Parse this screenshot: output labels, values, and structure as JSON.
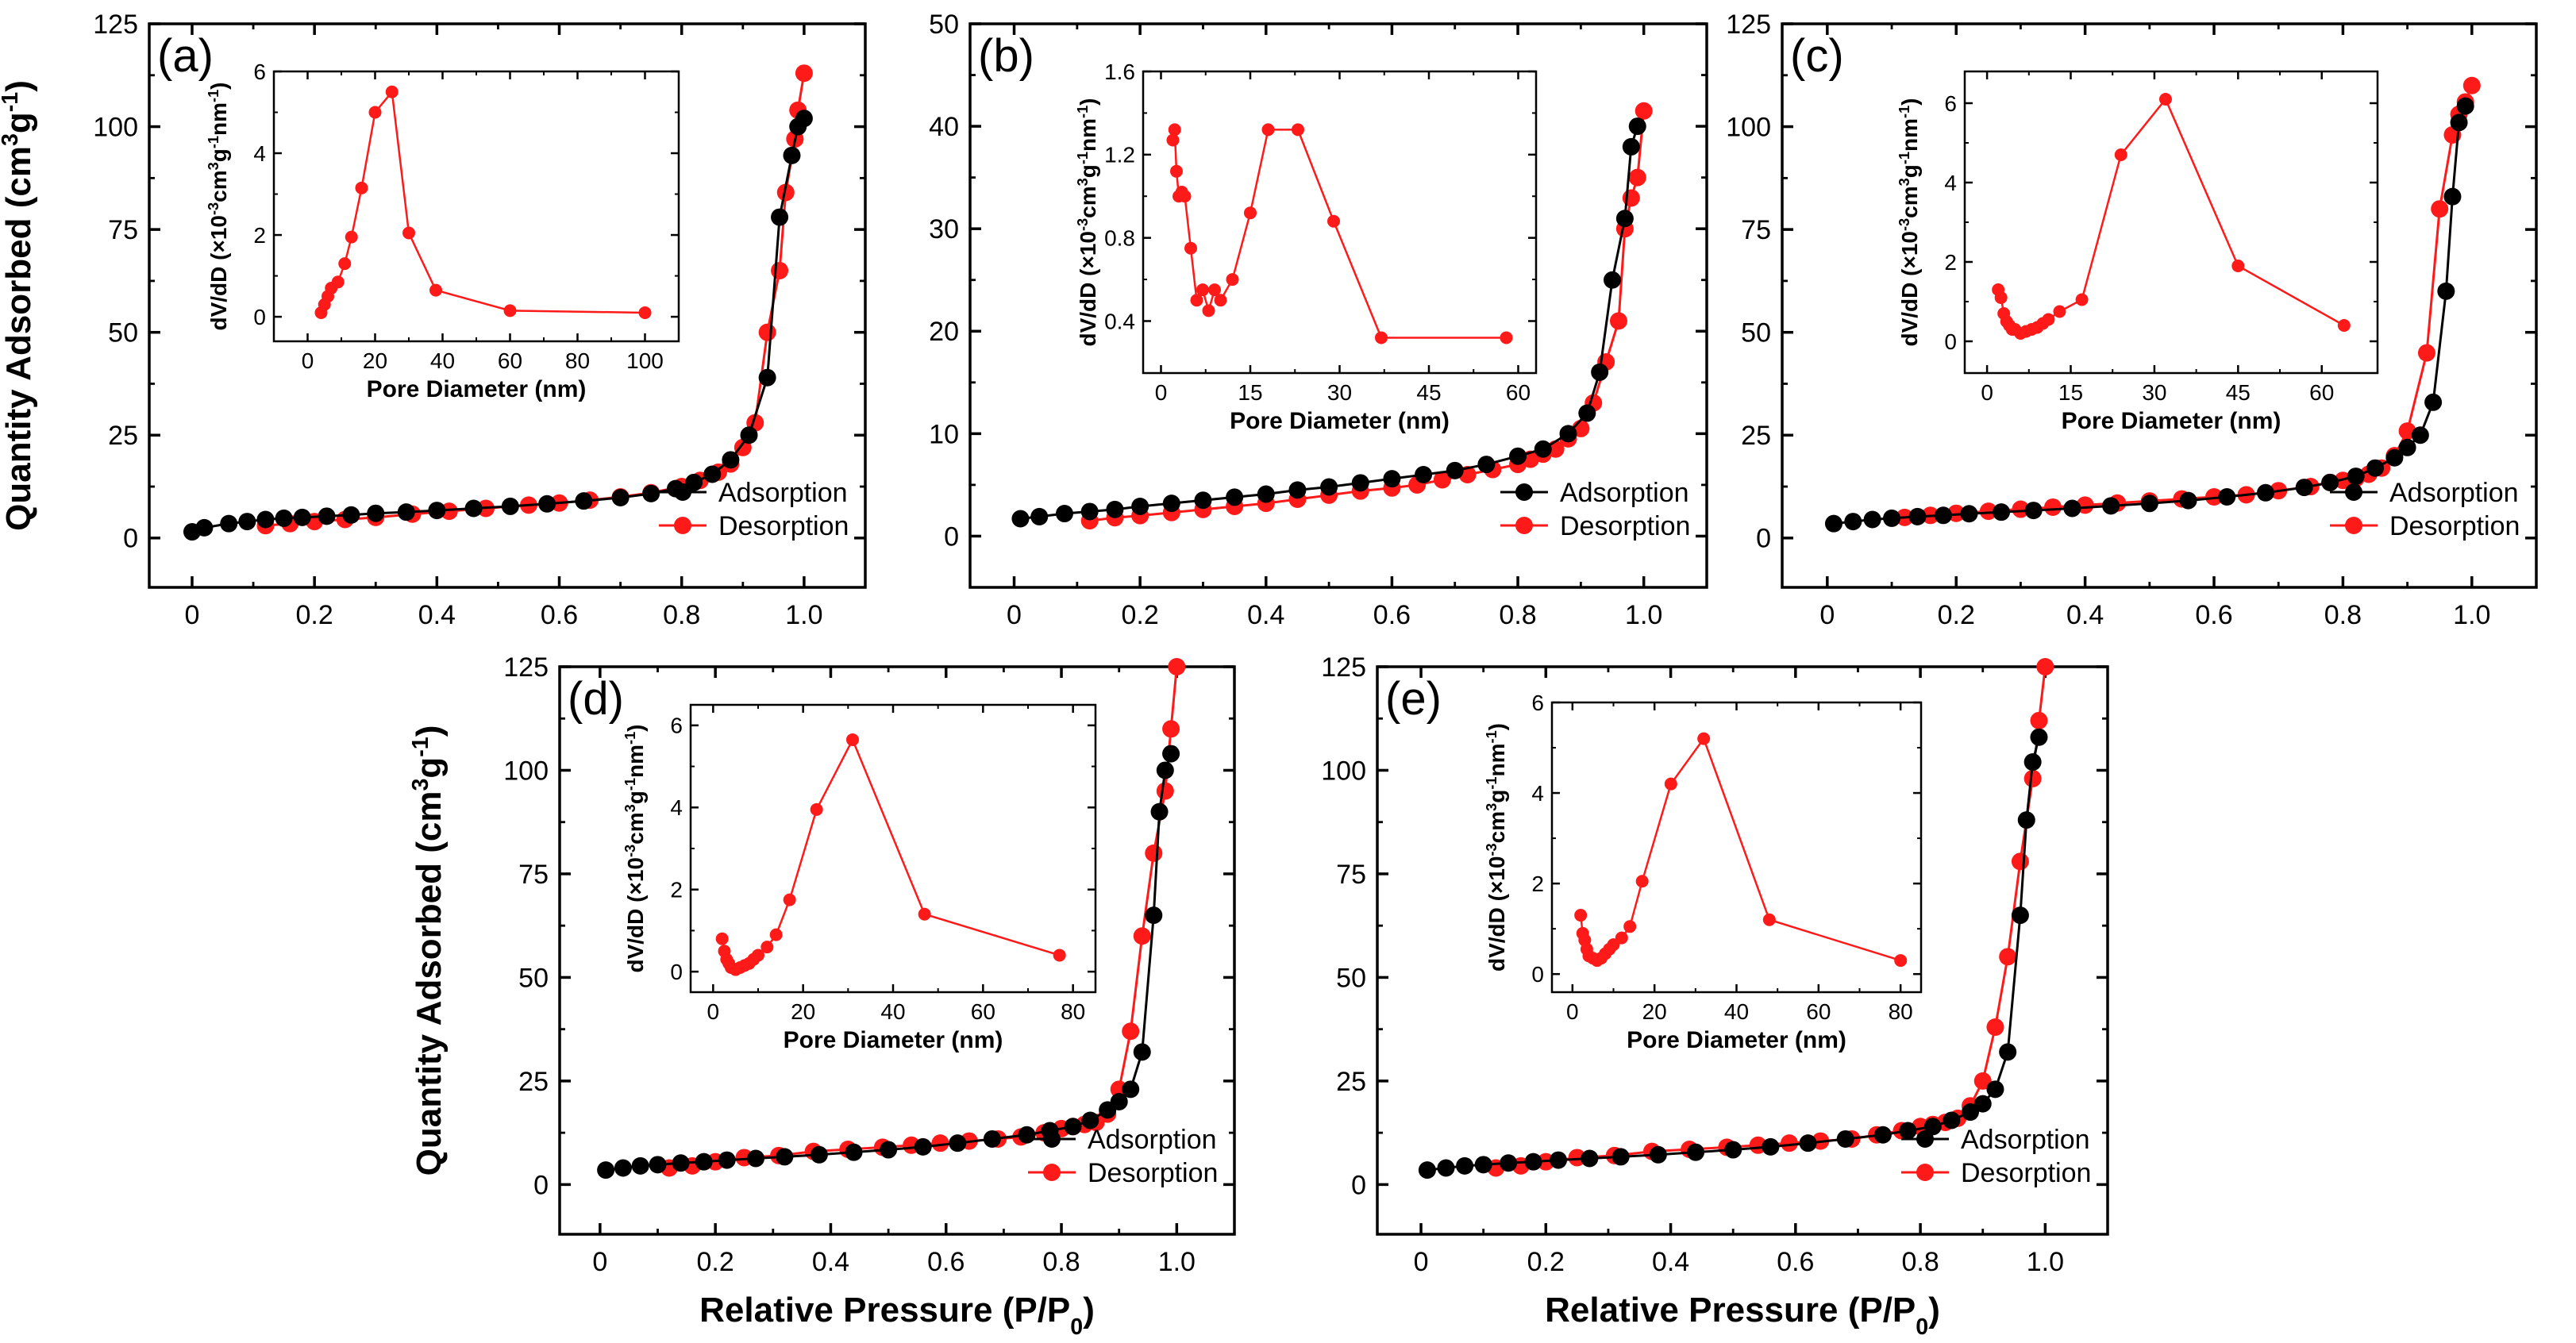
{
  "figure_labels": {
    "y_axis_label": "Quantity Adsorbed (cm3g-1)",
    "x_axis_label": "Relative Pressure (P/P0)",
    "inset_y_label": "dV/dD (×10-3cm3g-1nm-1)",
    "inset_x_label": "Pore Diameter (nm)"
  },
  "colors": {
    "adsorption": "#000000",
    "desorption": "#ff1a1a"
  },
  "chart_data": [
    {
      "panel": "(a)",
      "type": "line",
      "title": "",
      "xlabel": "",
      "ylabel": "Quantity Adsorbed (cm3g-1)",
      "xlim": [
        -0.07,
        1.1
      ],
      "ylim": [
        -12,
        125
      ],
      "x_ticks": [
        0,
        0.2,
        0.4,
        0.6,
        0.8,
        1.0
      ],
      "x_tick_labels": [
        "0",
        "0.2",
        "0.4",
        "0.6",
        "0.8",
        "1.0"
      ],
      "y_ticks": [
        0,
        25,
        50,
        75,
        100,
        125
      ],
      "legend": "bottom-right",
      "series": [
        {
          "name": "Adsorption",
          "color": "#000000",
          "x": [
            0.0,
            0.02,
            0.06,
            0.09,
            0.12,
            0.15,
            0.18,
            0.22,
            0.26,
            0.3,
            0.35,
            0.4,
            0.46,
            0.52,
            0.58,
            0.64,
            0.7,
            0.75,
            0.79,
            0.82,
            0.85,
            0.88,
            0.91,
            0.94,
            0.96,
            0.98,
            0.99,
            1.0
          ],
          "y": [
            1.5,
            2.5,
            3.5,
            4.0,
            4.5,
            4.8,
            5.0,
            5.3,
            5.6,
            6.0,
            6.3,
            6.7,
            7.2,
            7.7,
            8.3,
            9.0,
            9.8,
            10.8,
            12,
            13.5,
            15.5,
            19,
            25,
            39,
            78,
            93,
            100,
            102
          ]
        },
        {
          "name": "Desorption",
          "color": "#ff1a1a",
          "x": [
            1.0,
            0.99,
            0.985,
            0.97,
            0.96,
            0.94,
            0.92,
            0.9,
            0.88,
            0.86,
            0.83,
            0.8,
            0.75,
            0.7,
            0.65,
            0.6,
            0.55,
            0.48,
            0.42,
            0.36,
            0.3,
            0.25,
            0.2,
            0.16,
            0.12
          ],
          "y": [
            113,
            104,
            97,
            84,
            65,
            50,
            28,
            22,
            18,
            16,
            14,
            12.5,
            11,
            10,
            9.2,
            8.5,
            8,
            7.2,
            6.5,
            5.8,
            5,
            4.5,
            4,
            3.5,
            3
          ]
        }
      ],
      "inset": {
        "type": "line",
        "xlabel": "Pore Diameter (nm)",
        "ylabel": "dV/dD (×10-3cm3g-1nm-1)",
        "xlim": [
          -10,
          110
        ],
        "ylim": [
          -0.6,
          6
        ],
        "x_ticks": [
          0,
          20,
          40,
          60,
          80,
          100
        ],
        "y_ticks": [
          0,
          2,
          4,
          6
        ],
        "x": [
          4,
          5,
          6,
          7,
          9,
          11,
          13,
          16,
          20,
          25,
          30,
          38,
          60,
          100
        ],
        "y": [
          0.1,
          0.3,
          0.5,
          0.7,
          0.85,
          1.3,
          1.95,
          3.15,
          5.0,
          5.5,
          2.05,
          0.65,
          0.15,
          0.1
        ]
      }
    },
    {
      "panel": "(b)",
      "type": "line",
      "title": "",
      "xlabel": "",
      "ylabel": "",
      "xlim": [
        -0.07,
        1.1
      ],
      "ylim": [
        -5,
        50
      ],
      "x_ticks": [
        0,
        0.2,
        0.4,
        0.6,
        0.8,
        1.0
      ],
      "x_tick_labels": [
        "0",
        "0.2",
        "0.4",
        "0.6",
        "0.8",
        "1.0"
      ],
      "y_ticks": [
        0,
        10,
        20,
        30,
        40,
        50
      ],
      "legend": "bottom-right",
      "series": [
        {
          "name": "Adsorption",
          "color": "#000000",
          "x": [
            0.01,
            0.04,
            0.08,
            0.12,
            0.16,
            0.2,
            0.25,
            0.3,
            0.35,
            0.4,
            0.45,
            0.5,
            0.55,
            0.6,
            0.65,
            0.7,
            0.75,
            0.8,
            0.84,
            0.88,
            0.91,
            0.93,
            0.95,
            0.97,
            0.98,
            0.99
          ],
          "y": [
            1.7,
            1.9,
            2.2,
            2.4,
            2.6,
            2.9,
            3.2,
            3.5,
            3.8,
            4.1,
            4.5,
            4.8,
            5.2,
            5.6,
            6.0,
            6.4,
            7.0,
            7.8,
            8.5,
            10,
            12,
            16,
            25,
            31,
            38,
            40
          ]
        },
        {
          "name": "Desorption",
          "color": "#ff1a1a",
          "x": [
            1.0,
            0.99,
            0.98,
            0.97,
            0.96,
            0.94,
            0.92,
            0.9,
            0.88,
            0.86,
            0.84,
            0.82,
            0.8,
            0.76,
            0.72,
            0.68,
            0.64,
            0.6,
            0.55,
            0.5,
            0.45,
            0.4,
            0.35,
            0.3,
            0.25,
            0.2,
            0.16,
            0.12
          ],
          "y": [
            41.5,
            35,
            33,
            30,
            21,
            17,
            13,
            10.5,
            9.5,
            8.5,
            8.0,
            7.5,
            7.0,
            6.5,
            6.0,
            5.5,
            5.0,
            4.7,
            4.4,
            4.0,
            3.6,
            3.2,
            2.9,
            2.6,
            2.3,
            2.0,
            1.8,
            1.5
          ]
        }
      ],
      "inset": {
        "type": "line",
        "xlabel": "Pore Diameter (nm)",
        "ylabel": "dV/dD (×10-3cm3g-1nm-1)",
        "xlim": [
          -3,
          63
        ],
        "ylim": [
          0.15,
          1.6
        ],
        "x_ticks": [
          0,
          15,
          30,
          45,
          60
        ],
        "y_ticks": [
          0.4,
          0.8,
          1.2,
          1.6
        ],
        "x": [
          2,
          2.3,
          2.6,
          3,
          3.5,
          4,
          5,
          6,
          7,
          8,
          9,
          10,
          12,
          15,
          18,
          23,
          29,
          37,
          58
        ],
        "y": [
          1.27,
          1.32,
          1.12,
          1.0,
          1.02,
          1.0,
          0.75,
          0.5,
          0.55,
          0.45,
          0.55,
          0.5,
          0.6,
          0.92,
          1.32,
          1.32,
          0.88,
          0.32,
          0.32
        ]
      }
    },
    {
      "panel": "(c)",
      "type": "line",
      "title": "",
      "xlabel": "",
      "ylabel": "",
      "xlim": [
        -0.07,
        1.1
      ],
      "ylim": [
        -12,
        125
      ],
      "x_ticks": [
        0,
        0.2,
        0.4,
        0.6,
        0.8,
        1.0
      ],
      "x_tick_labels": [
        "0",
        "0.2",
        "0.4",
        "0.6",
        "0.8",
        "1.0"
      ],
      "y_ticks": [
        0,
        25,
        50,
        75,
        100,
        125
      ],
      "legend": "bottom-right",
      "series": [
        {
          "name": "Adsorption",
          "color": "#000000",
          "x": [
            0.01,
            0.04,
            0.07,
            0.1,
            0.14,
            0.18,
            0.22,
            0.27,
            0.32,
            0.38,
            0.44,
            0.5,
            0.56,
            0.62,
            0.68,
            0.74,
            0.78,
            0.82,
            0.85,
            0.88,
            0.9,
            0.92,
            0.94,
            0.96,
            0.97,
            0.98,
            0.99
          ],
          "y": [
            3.5,
            4.0,
            4.5,
            4.8,
            5.2,
            5.5,
            5.9,
            6.3,
            6.7,
            7.2,
            7.8,
            8.4,
            9.1,
            10,
            11,
            12.3,
            13.5,
            15,
            17,
            19.5,
            22,
            25,
            33,
            60,
            83,
            101,
            105
          ]
        },
        {
          "name": "Desorption",
          "color": "#ff1a1a",
          "x": [
            1.0,
            0.99,
            0.98,
            0.97,
            0.95,
            0.93,
            0.9,
            0.88,
            0.86,
            0.84,
            0.82,
            0.8,
            0.78,
            0.75,
            0.7,
            0.65,
            0.6,
            0.55,
            0.5,
            0.45,
            0.4,
            0.35,
            0.3,
            0.25,
            0.2,
            0.16,
            0.12
          ],
          "y": [
            110,
            106,
            103,
            98,
            80,
            45,
            26,
            20,
            17,
            15.5,
            14.5,
            14,
            13.5,
            12.5,
            11.5,
            10.5,
            10,
            9.5,
            9,
            8.5,
            8,
            7.5,
            7,
            6.5,
            6,
            5.5,
            5
          ]
        }
      ],
      "inset": {
        "type": "line",
        "xlabel": "Pore Diameter (nm)",
        "ylabel": "dV/dD (×10-3cm3g-1nm-1)",
        "xlim": [
          -4,
          70
        ],
        "ylim": [
          -0.8,
          6.8
        ],
        "x_ticks": [
          0,
          15,
          30,
          45,
          60
        ],
        "y_ticks": [
          0,
          2,
          4,
          6
        ],
        "x": [
          2,
          2.5,
          3,
          3.5,
          4,
          4.5,
          5,
          6,
          7,
          8,
          9,
          10,
          11,
          13,
          17,
          24,
          32,
          45,
          64
        ],
        "y": [
          1.3,
          1.1,
          0.7,
          0.5,
          0.4,
          0.3,
          0.3,
          0.2,
          0.25,
          0.3,
          0.35,
          0.45,
          0.55,
          0.75,
          1.05,
          4.7,
          6.1,
          1.9,
          0.4
        ]
      }
    },
    {
      "panel": "(d)",
      "type": "line",
      "title": "",
      "xlabel": "Relative Pressure (P/P0)",
      "ylabel": "Quantity Adsorbed (cm3g-1)",
      "xlim": [
        -0.07,
        1.1
      ],
      "ylim": [
        -12,
        125
      ],
      "x_ticks": [
        0,
        0.2,
        0.4,
        0.6,
        0.8,
        1.0
      ],
      "x_tick_labels": [
        "0",
        "0.2",
        "0.4",
        "0.6",
        "0.8",
        "1.0"
      ],
      "y_ticks": [
        0,
        25,
        50,
        75,
        100,
        125
      ],
      "legend": "bottom-right",
      "series": [
        {
          "name": "Adsorption",
          "color": "#000000",
          "x": [
            0.01,
            0.04,
            0.07,
            0.1,
            0.14,
            0.18,
            0.22,
            0.27,
            0.32,
            0.38,
            0.44,
            0.5,
            0.56,
            0.62,
            0.68,
            0.74,
            0.78,
            0.82,
            0.85,
            0.88,
            0.9,
            0.92,
            0.94,
            0.96,
            0.97,
            0.98,
            0.99
          ],
          "y": [
            3.5,
            4.0,
            4.5,
            4.8,
            5.2,
            5.5,
            5.9,
            6.3,
            6.7,
            7.2,
            7.8,
            8.4,
            9.1,
            10,
            11,
            12,
            13,
            14,
            15.5,
            18,
            20,
            23,
            32,
            65,
            90,
            100,
            104
          ]
        },
        {
          "name": "Desorption",
          "color": "#ff1a1a",
          "x": [
            1.0,
            0.99,
            0.98,
            0.96,
            0.94,
            0.92,
            0.9,
            0.88,
            0.86,
            0.84,
            0.82,
            0.8,
            0.77,
            0.73,
            0.69,
            0.64,
            0.59,
            0.54,
            0.49,
            0.43,
            0.37,
            0.31,
            0.25,
            0.2,
            0.16,
            0.12
          ],
          "y": [
            125,
            110,
            95,
            80,
            60,
            37,
            23,
            17,
            15,
            14.5,
            14,
            13.5,
            12.5,
            11.5,
            11,
            10.5,
            10,
            9.5,
            9,
            8.5,
            8,
            7,
            6.5,
            5.5,
            4.5,
            4
          ]
        }
      ],
      "inset": {
        "type": "line",
        "xlabel": "Pore Diameter (nm)",
        "ylabel": "dV/dD (×10-3cm3g-1nm-1)",
        "xlim": [
          -5,
          85
        ],
        "ylim": [
          -0.5,
          6.5
        ],
        "x_ticks": [
          0,
          20,
          40,
          60,
          80
        ],
        "y_ticks": [
          0,
          2,
          4,
          6
        ],
        "x": [
          2,
          2.5,
          3,
          3.5,
          4,
          5,
          6,
          7,
          8,
          9,
          10,
          12,
          14,
          17,
          23,
          31,
          47,
          77
        ],
        "y": [
          0.8,
          0.5,
          0.3,
          0.2,
          0.1,
          0.05,
          0.1,
          0.15,
          0.2,
          0.3,
          0.4,
          0.6,
          0.9,
          1.75,
          3.95,
          5.65,
          1.4,
          0.4
        ]
      }
    },
    {
      "panel": "(e)",
      "type": "line",
      "title": "",
      "xlabel": "Relative Pressure (P/P0)",
      "ylabel": "",
      "xlim": [
        -0.07,
        1.1
      ],
      "ylim": [
        -12,
        125
      ],
      "x_ticks": [
        0,
        0.2,
        0.4,
        0.6,
        0.8,
        1.0
      ],
      "x_tick_labels": [
        "0",
        "0.2",
        "0.4",
        "0.6",
        "0.8",
        "1.0"
      ],
      "y_ticks": [
        0,
        25,
        50,
        75,
        100,
        125
      ],
      "legend": "bottom-right",
      "series": [
        {
          "name": "Adsorption",
          "color": "#000000",
          "x": [
            0.01,
            0.04,
            0.07,
            0.1,
            0.14,
            0.18,
            0.22,
            0.27,
            0.32,
            0.38,
            0.44,
            0.5,
            0.56,
            0.62,
            0.68,
            0.74,
            0.78,
            0.82,
            0.85,
            0.88,
            0.9,
            0.92,
            0.94,
            0.96,
            0.97,
            0.98,
            0.99
          ],
          "y": [
            3.5,
            4.0,
            4.5,
            4.8,
            5.2,
            5.5,
            5.9,
            6.3,
            6.7,
            7.2,
            7.8,
            8.4,
            9.1,
            10,
            11,
            12,
            13,
            14,
            15.5,
            17.5,
            19.5,
            23,
            32,
            65,
            88,
            102,
            108
          ]
        },
        {
          "name": "Desorption",
          "color": "#ff1a1a",
          "x": [
            1.0,
            0.99,
            0.98,
            0.96,
            0.94,
            0.92,
            0.9,
            0.88,
            0.86,
            0.84,
            0.82,
            0.8,
            0.77,
            0.73,
            0.69,
            0.64,
            0.59,
            0.54,
            0.49,
            0.43,
            0.37,
            0.31,
            0.25,
            0.2,
            0.16,
            0.12
          ],
          "y": [
            125,
            112,
            98,
            78,
            55,
            38,
            25,
            19,
            16,
            15,
            14.5,
            14,
            13,
            12,
            11,
            10.5,
            10,
            9.5,
            9,
            8.5,
            8,
            7,
            6.5,
            5.5,
            4.5,
            4
          ]
        }
      ],
      "inset": {
        "type": "line",
        "xlabel": "Pore Diameter (nm)",
        "ylabel": "dV/dD (×10-3cm3g-1nm-1)",
        "xlim": [
          -5,
          85
        ],
        "ylim": [
          -0.4,
          6
        ],
        "x_ticks": [
          0,
          20,
          40,
          60,
          80
        ],
        "y_ticks": [
          0,
          2,
          4,
          6
        ],
        "x": [
          2,
          2.5,
          3,
          3.5,
          4,
          5,
          6,
          7,
          8,
          9,
          10,
          12,
          14,
          17,
          24,
          32,
          48,
          80
        ],
        "y": [
          1.3,
          0.9,
          0.75,
          0.55,
          0.4,
          0.35,
          0.3,
          0.35,
          0.45,
          0.55,
          0.65,
          0.8,
          1.05,
          2.05,
          4.2,
          5.2,
          1.2,
          0.3
        ]
      }
    }
  ]
}
